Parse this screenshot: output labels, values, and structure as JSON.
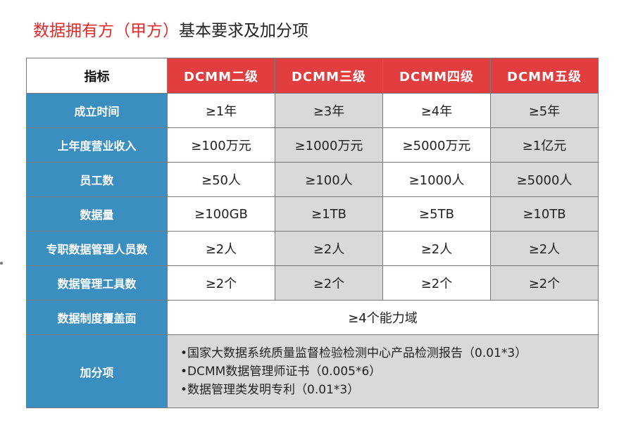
{
  "title": {
    "highlight": "数据拥有方（甲方）",
    "rest": "基本要求及加分项"
  },
  "table": {
    "corner_label": "指标",
    "levels": [
      "DCMM二级",
      "DCMM三级",
      "DCMM四级",
      "DCMM五级"
    ],
    "rows": [
      {
        "label": "成立时间",
        "values": [
          "≥1年",
          "≥3年",
          "≥4年",
          "≥5年"
        ],
        "shade": [
          "w",
          "g",
          "w",
          "g"
        ]
      },
      {
        "label": "上年度营业收入",
        "values": [
          "≥100万元",
          "≥1000万元",
          "≥5000万元",
          "≥1亿元"
        ],
        "shade": [
          "w",
          "g",
          "w",
          "g"
        ]
      },
      {
        "label": "员工数",
        "values": [
          "≥50人",
          "≥100人",
          "≥1000人",
          "≥5000人"
        ],
        "shade": [
          "w",
          "g",
          "w",
          "g"
        ]
      },
      {
        "label": "数据量",
        "values": [
          "≥100GB",
          "≥1TB",
          "≥5TB",
          "≥10TB"
        ],
        "shade": [
          "w",
          "g",
          "w",
          "g"
        ]
      },
      {
        "label": "专职数据管理人员数",
        "values": [
          "≥2人",
          "≥2人",
          "≥2人",
          "≥2人"
        ],
        "shade": [
          "w",
          "g",
          "w",
          "g"
        ]
      },
      {
        "label": "数据管理工具数",
        "values": [
          "≥2个",
          "≥2个",
          "≥2个",
          "≥2个"
        ],
        "shade": [
          "w",
          "g",
          "w",
          "g"
        ]
      }
    ],
    "coverage": {
      "label": "数据制度覆盖面",
      "value": "≥4个能力域"
    },
    "bonus": {
      "label": "加分项",
      "items": [
        "•国家大数据系统质量监督检验检测中心产品检测报告（0.01*3）",
        "•DCMM数据管理师证书（0.005*6）",
        "•数据管理类发明专利（0.01*3）"
      ]
    }
  },
  "colors": {
    "title_highlight": "#e02a2a",
    "header_red": "#e23d3f",
    "row_header_blue": "#3a8fc0",
    "shaded_cell": "#d9d9d9"
  }
}
